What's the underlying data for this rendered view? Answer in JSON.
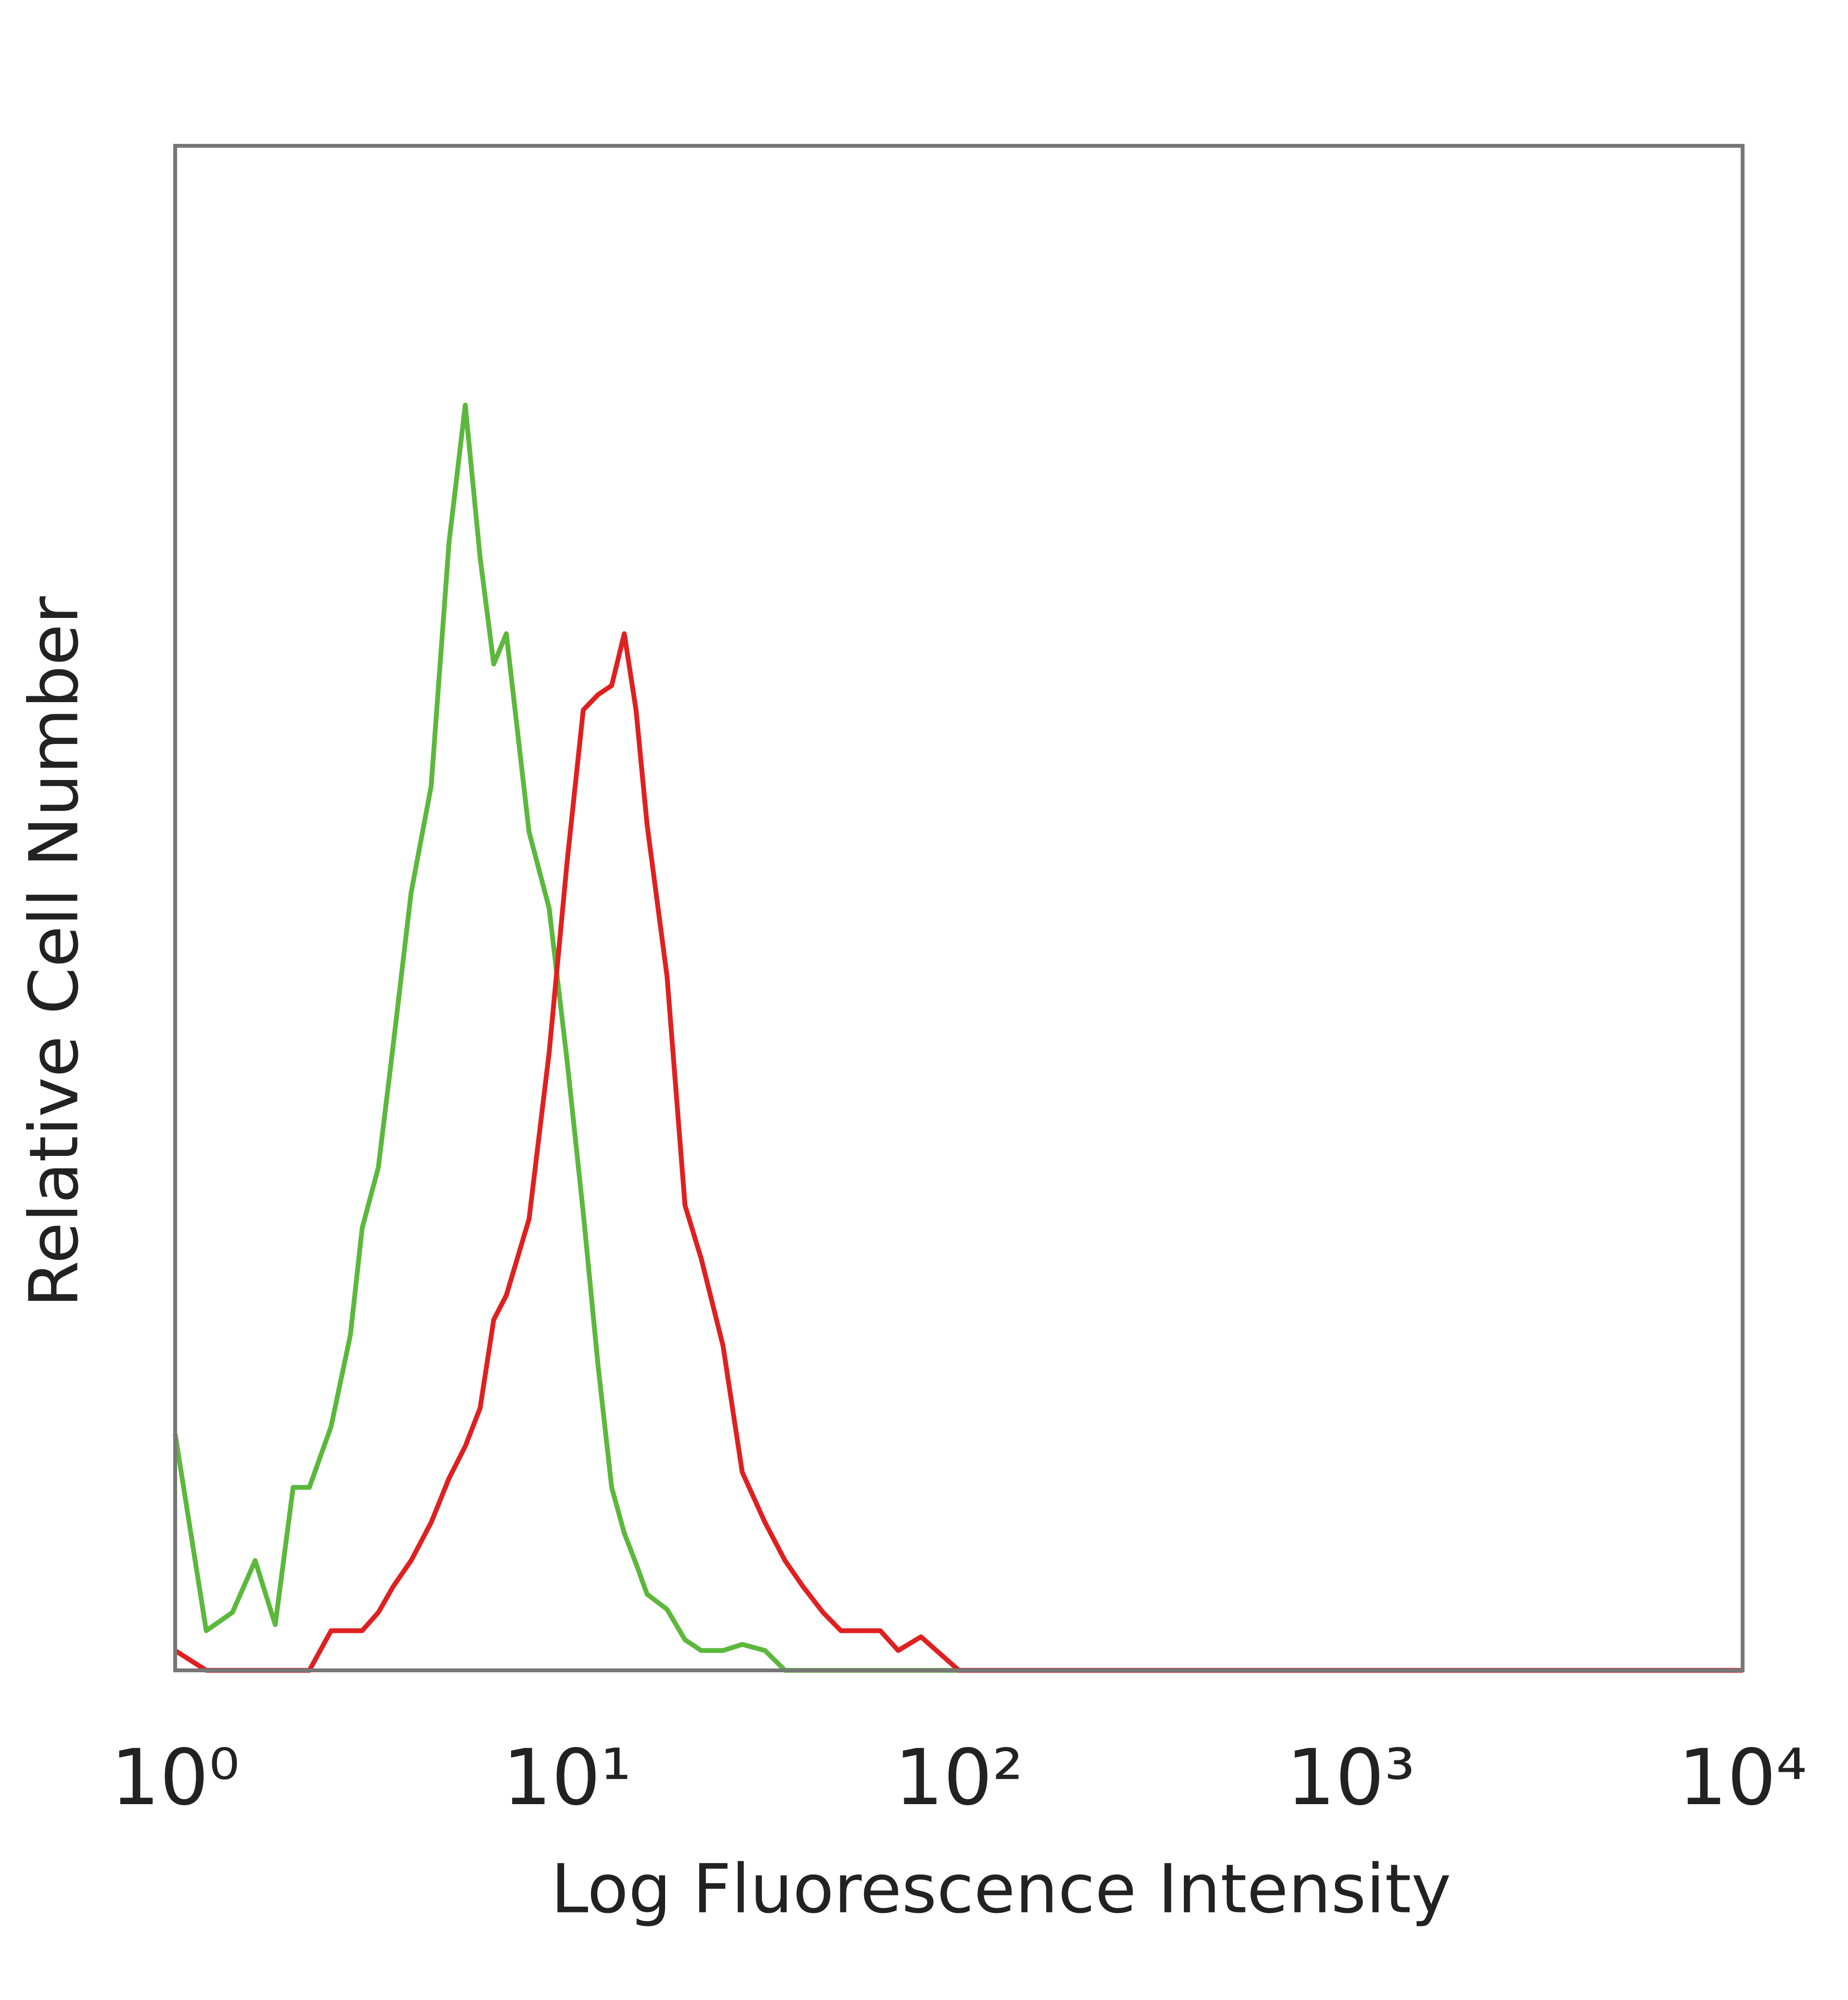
{
  "chart_data": {
    "type": "line",
    "x_label": "Log Fluorescence Intensity",
    "y_label": "Relative Cell Number",
    "log_x": true,
    "grid": false,
    "xlim": [
      1,
      10000
    ],
    "ylim": [
      0,
      100
    ],
    "xticks": [
      {
        "value": 1,
        "label": "10⁰"
      },
      {
        "value": 10,
        "label": "10¹"
      },
      {
        "value": 100,
        "label": "10²"
      },
      {
        "value": 1000,
        "label": "10³"
      },
      {
        "value": 10000,
        "label": "10⁴"
      }
    ],
    "x": [
      1,
      1.2,
      1.4,
      1.6,
      1.8,
      2,
      2.2,
      2.5,
      2.8,
      3,
      3.3,
      3.6,
      4,
      4.5,
      5,
      5.5,
      6,
      6.5,
      7,
      8,
      9,
      10,
      11,
      12,
      13,
      14,
      15,
      16,
      18,
      20,
      22,
      25,
      28,
      32,
      36,
      40,
      45,
      50,
      56,
      63,
      70,
      80,
      100,
      1000,
      10000
    ],
    "series": [
      {
        "color": "#5cb83c",
        "values": [
          15.5,
          2.6,
          3.8,
          7.2,
          3,
          12,
          12,
          16,
          22,
          29,
          33,
          41,
          51,
          58,
          74,
          83,
          73,
          66,
          68,
          55,
          50,
          40,
          30,
          20,
          12,
          9,
          7,
          5,
          4,
          2,
          1.3,
          1.3,
          1.7,
          1.3,
          0,
          0,
          0,
          0,
          0,
          0,
          0,
          0,
          0,
          0,
          0
        ]
      },
      {
        "color": "#e02020",
        "values": [
          1.3,
          0,
          0,
          0,
          0,
          0,
          0,
          2.6,
          2.6,
          2.6,
          3.8,
          5.5,
          7.2,
          9.7,
          12.6,
          14.7,
          17.2,
          23,
          24.6,
          29.6,
          40.5,
          53,
          63,
          64,
          64.6,
          68,
          63,
          55.5,
          45.5,
          30.5,
          27,
          21.3,
          13,
          9.7,
          7.2,
          5.5,
          3.8,
          2.6,
          2.6,
          2.6,
          1.3,
          2.2,
          0,
          0,
          0
        ]
      }
    ]
  }
}
